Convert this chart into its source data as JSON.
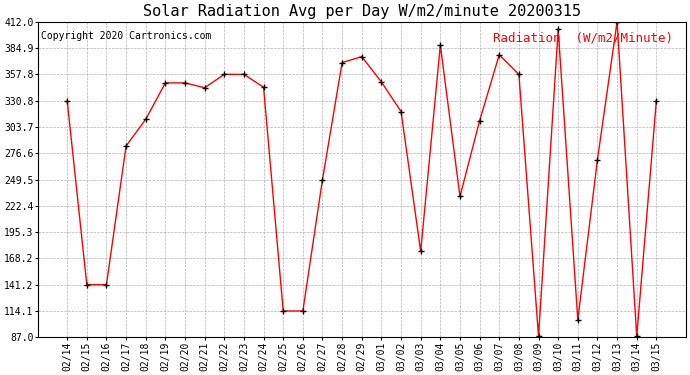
{
  "title": "Solar Radiation Avg per Day W/m2/minute 20200315",
  "copyright_text": "Copyright 2020 Cartronics.com",
  "legend_label": "Radiation  (W/m2/Minute)",
  "labels": [
    "02/14",
    "02/15",
    "02/16",
    "02/17",
    "02/18",
    "02/19",
    "02/20",
    "02/21",
    "02/22",
    "02/23",
    "02/24",
    "02/25",
    "02/26",
    "02/27",
    "02/28",
    "02/29",
    "03/01",
    "03/02",
    "03/03",
    "03/04",
    "03/05",
    "03/06",
    "03/07",
    "03/08",
    "03/09",
    "03/10",
    "03/11",
    "03/12",
    "03/13",
    "03/14",
    "03/15"
  ],
  "values": [
    330.8,
    141.2,
    141.2,
    284.0,
    311.5,
    349.0,
    349.0,
    344.0,
    357.8,
    357.8,
    344.5,
    114.1,
    114.1,
    249.5,
    370.0,
    376.0,
    350.0,
    319.5,
    175.5,
    388.0,
    232.0,
    310.0,
    378.0,
    357.8,
    88.0,
    404.0,
    105.0,
    270.0,
    412.0,
    88.0,
    330.8
  ],
  "line_color": "red",
  "marker_color": "black",
  "background_color": "#ffffff",
  "grid_color": "#aaaaaa",
  "ylim": [
    87.0,
    412.0
  ],
  "yticks": [
    87.0,
    114.1,
    141.2,
    168.2,
    195.3,
    222.4,
    249.5,
    276.6,
    303.7,
    330.8,
    357.8,
    384.9,
    412.0
  ],
  "title_fontsize": 11,
  "copyright_fontsize": 7,
  "legend_fontsize": 9,
  "tick_fontsize": 7,
  "figsize": [
    6.9,
    3.75
  ],
  "dpi": 100
}
